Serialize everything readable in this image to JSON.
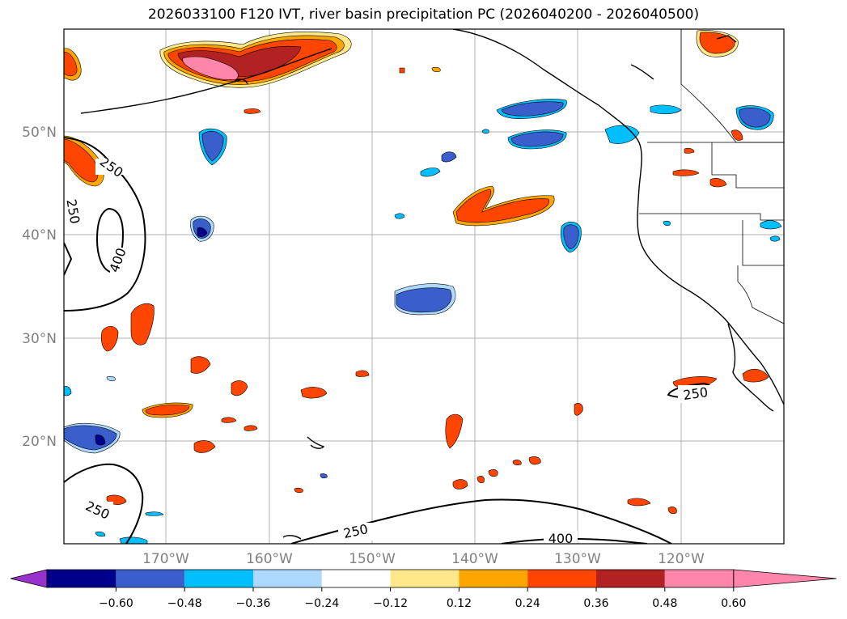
{
  "title": "2026033100 F120 IVT, river basin precipitation PC (2026040200 - 2026040500)",
  "map": {
    "latitude_labels": [
      "50°N",
      "40°N",
      "30°N",
      "20°N"
    ],
    "longitude_labels": [
      "170°W",
      "160°W",
      "150°W",
      "140°W",
      "130°W",
      "120°W"
    ],
    "ivt_contour_labels": [
      "250",
      "250",
      "400",
      "250",
      "250",
      "400",
      "250"
    ],
    "colors": {
      "land_lines": "#000000",
      "grid": "#b0b0b0"
    }
  },
  "colorbar": {
    "tick_labels": [
      "−0.60",
      "−0.48",
      "−0.36",
      "−0.24",
      "−0.12",
      "0.12",
      "0.24",
      "0.36",
      "0.48",
      "0.60"
    ],
    "colors": [
      "#9932cc",
      "#00008b",
      "#3a5fcd",
      "#00bfff",
      "#add8ff",
      "#ffffff",
      "#ffe88a",
      "#ffa500",
      "#ff4500",
      "#b22222",
      "#ff85aa"
    ]
  }
}
